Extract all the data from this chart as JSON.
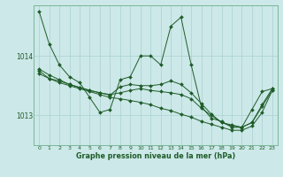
{
  "title": "Graphe pression niveau de la mer (hPa)",
  "background_color": "#cce8e8",
  "grid_color": "#aad0d0",
  "line_color": "#1e5c28",
  "marker_color": "#1e5c28",
  "xlim": [
    -0.5,
    23.5
  ],
  "ylim": [
    1012.5,
    1014.85
  ],
  "yticks": [
    1013,
    1014
  ],
  "xticks": [
    0,
    1,
    2,
    3,
    4,
    5,
    6,
    7,
    8,
    9,
    10,
    11,
    12,
    13,
    14,
    15,
    16,
    17,
    18,
    19,
    20,
    21,
    22,
    23
  ],
  "series": [
    [
      1014.75,
      1014.2,
      1013.85,
      1013.65,
      1013.55,
      1013.3,
      1013.05,
      1013.1,
      1013.6,
      1013.65,
      1014.0,
      1014.0,
      1013.85,
      1014.5,
      1014.65,
      1013.85,
      1013.15,
      1012.95,
      1012.9,
      1012.8,
      1012.8,
      1013.1,
      1013.4,
      1013.45
    ],
    [
      1013.75,
      1013.62,
      1013.58,
      1013.52,
      1013.47,
      1013.42,
      1013.38,
      1013.35,
      1013.38,
      1013.42,
      1013.45,
      1013.42,
      1013.4,
      1013.38,
      1013.35,
      1013.28,
      1013.12,
      1013.0,
      1012.88,
      1012.82,
      1012.8,
      1012.88,
      1013.15,
      1013.42
    ],
    [
      1013.7,
      1013.62,
      1013.55,
      1013.5,
      1013.45,
      1013.4,
      1013.35,
      1013.3,
      1013.28,
      1013.25,
      1013.22,
      1013.18,
      1013.12,
      1013.08,
      1013.02,
      1012.97,
      1012.9,
      1012.85,
      1012.8,
      1012.75,
      1012.75,
      1012.82,
      1013.05,
      1013.42
    ],
    [
      1013.78,
      1013.68,
      1013.6,
      1013.52,
      1013.47,
      1013.42,
      1013.38,
      1013.34,
      1013.48,
      1013.52,
      1013.5,
      1013.5,
      1013.52,
      1013.58,
      1013.52,
      1013.38,
      1013.2,
      1013.02,
      1012.88,
      1012.84,
      1012.8,
      1012.88,
      1013.18,
      1013.45
    ]
  ]
}
